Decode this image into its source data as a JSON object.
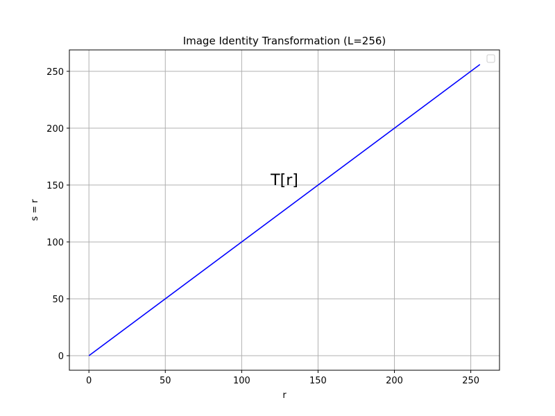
{
  "chart_data": {
    "type": "line",
    "title": "Image Identity Transformation (L=256)",
    "xlabel": "r",
    "ylabel": "s = r",
    "xlim": [
      -12.8,
      268.8
    ],
    "ylim": [
      -12.8,
      268.8
    ],
    "xticks": [
      0,
      50,
      100,
      150,
      200,
      250
    ],
    "yticks": [
      0,
      50,
      100,
      150,
      200,
      250
    ],
    "grid": true,
    "legend": {
      "placement": "top-right",
      "entries": []
    },
    "series": [
      {
        "color": "#0000ff",
        "x": [
          0,
          256
        ],
        "y": [
          0,
          256
        ]
      }
    ],
    "annotations": [
      {
        "text": "T[r]",
        "x": 128,
        "y": 150
      }
    ]
  }
}
